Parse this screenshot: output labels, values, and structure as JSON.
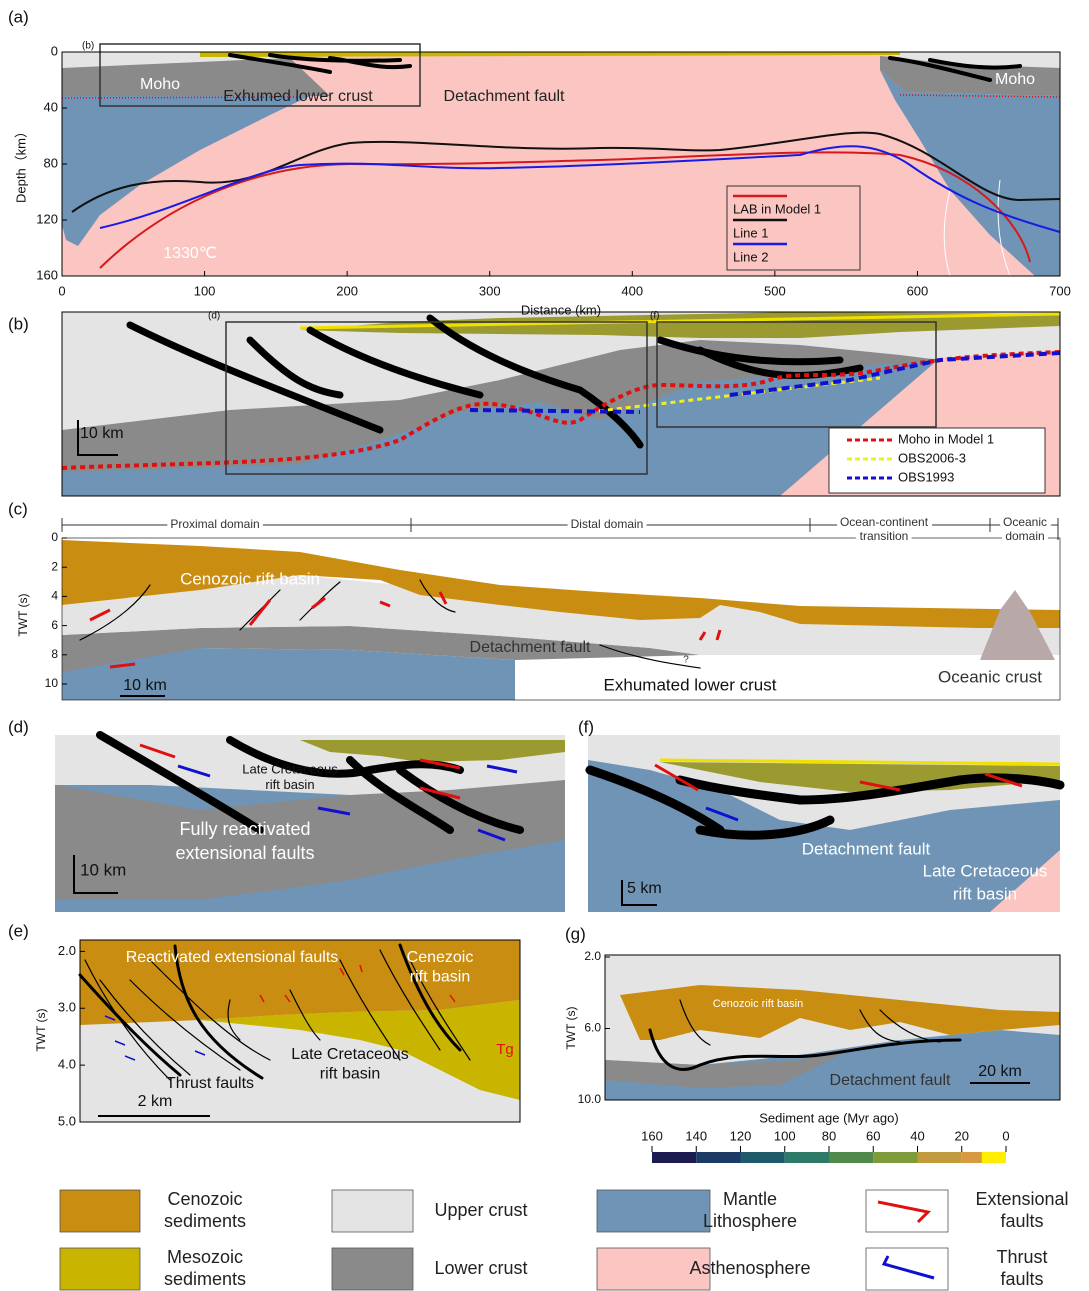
{
  "panel_a": {
    "label": "(a)",
    "inset_label": "(b)",
    "ylabel": "Depth（km）",
    "xlabel": "Distance (km)",
    "xlim": [
      0,
      700
    ],
    "xticks": [
      0,
      100,
      200,
      300,
      400,
      500,
      600,
      700
    ],
    "ylim": [
      0,
      160
    ],
    "yticks": [
      0,
      40,
      80,
      120,
      160
    ],
    "annotations": [
      "Moho",
      "Moho",
      "Exhumed lower crust",
      "Detachment fault",
      "1330℃"
    ],
    "legend": [
      {
        "name": "LAB in Model 1",
        "color": "#d7191c"
      },
      {
        "name": "Line 1",
        "color": "#111111"
      },
      {
        "name": "Line 2",
        "color": "#1a1ae6"
      }
    ]
  },
  "panel_b": {
    "label": "(b)",
    "inset_labels": [
      "(d)",
      "(f)"
    ],
    "scale_bar": "10 km",
    "legend": [
      {
        "name": "Moho in Model 1",
        "color": "#e01010"
      },
      {
        "name": "OBS2006-3",
        "color": "#f0f020"
      },
      {
        "name": "OBS1993",
        "color": "#1010d0"
      }
    ]
  },
  "panel_c": {
    "label": "(c)",
    "domains": [
      [
        "Proximal domain"
      ],
      [
        "Distal domain"
      ],
      [
        "Ocean-continent",
        "transition"
      ],
      [
        "Oceanic",
        "domain"
      ]
    ],
    "ylabel": "TWT (s)",
    "ylim": [
      0,
      11
    ],
    "yticks": [
      0,
      2,
      4,
      6,
      8,
      10
    ],
    "annotations": [
      [
        "Cenozoic rift basin"
      ],
      [
        "Detachment fault"
      ],
      [
        "Exhumated lower crust"
      ],
      [
        "Oceanic crust"
      ],
      [
        "?"
      ]
    ],
    "scale_bar": "10 km"
  },
  "panel_d": {
    "label": "(d)",
    "annotations": [
      [
        "Late Cretaceous",
        "rift basin"
      ],
      [
        "Fully reactivated",
        "extensional faults"
      ]
    ],
    "scale_bar": "10 km"
  },
  "panel_f": {
    "label": "(f)",
    "annotations": [
      [
        "Detachment fault"
      ],
      [
        "Late Cretaceous",
        "rift basin"
      ]
    ],
    "scale_bar": "5 km"
  },
  "panel_e": {
    "label": "(e)",
    "ylabel": "TWT (s)",
    "ylim": [
      1.8,
      5.0
    ],
    "yticks": [
      {
        "value": 2,
        "label": "2.0"
      },
      {
        "value": 3,
        "label": "3.0"
      },
      {
        "value": 4,
        "label": "4.0"
      },
      {
        "value": 5,
        "label": "5.0"
      }
    ],
    "annotations": [
      [
        "Reactivated extensional faults"
      ],
      [
        "Cenezoic",
        "rift basin"
      ],
      [
        "Late Cretaceous",
        "rift basin"
      ],
      [
        "Thrust faults"
      ],
      [
        "Tg"
      ]
    ],
    "scale_bar": "2 km"
  },
  "panel_g": {
    "label": "(g)",
    "ylabel": "TWT (s)",
    "ylim": [
      2,
      10
    ],
    "yticks": [
      {
        "value": 2,
        "label": "2.0"
      },
      {
        "value": 6,
        "label": "6.0"
      },
      {
        "value": 10,
        "label": "10.0"
      }
    ],
    "annotations": [
      [
        "Cenozoic rift basin"
      ],
      [
        "Detachment fault"
      ]
    ],
    "scale_bar": "20 km"
  },
  "colorbar": {
    "title": "Sediment age (Myr ago)",
    "ticks": [
      160,
      140,
      120,
      100,
      80,
      60,
      40,
      20,
      0
    ],
    "colors": [
      "#1b1b4f",
      "#1b3a66",
      "#1f5a6c",
      "#2d7a68",
      "#4f8a4a",
      "#7f9a38",
      "#c09a3c",
      "#d89a40",
      "#ffee00"
    ]
  },
  "legend": [
    {
      "label": [
        "Cenozoic",
        "sediments"
      ],
      "color": "#c98d12",
      "style": "patch"
    },
    {
      "label": [
        "Mesozoic",
        "sediments"
      ],
      "color": "#c9b400",
      "style": "patch"
    },
    {
      "label": [
        "Upper crust"
      ],
      "color": "#e4e4e4",
      "style": "patch"
    },
    {
      "label": [
        "Lower crust"
      ],
      "color": "#8a8a8a",
      "style": "patch"
    },
    {
      "label": [
        "Mantle",
        "Lithosphere"
      ],
      "color": "#6f94b5",
      "style": "patch"
    },
    {
      "label": [
        "Asthenosphere"
      ],
      "color": "#fbc6c2",
      "style": "patch"
    },
    {
      "label": [
        "Extensional",
        "faults"
      ],
      "color": "#e01010",
      "style": "arrow"
    },
    {
      "label": [
        "Thrust",
        "faults"
      ],
      "color": "#1010d0",
      "style": "arrow"
    }
  ]
}
